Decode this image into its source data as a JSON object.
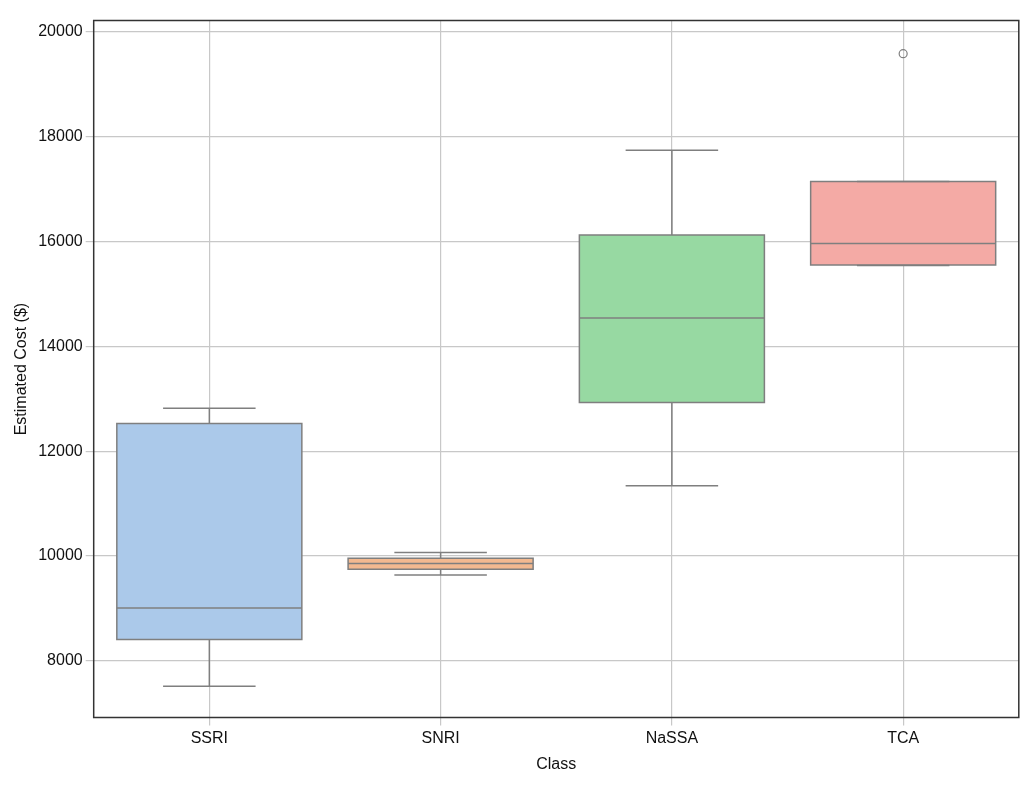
{
  "chart_data": {
    "type": "box",
    "xlabel": "Class",
    "ylabel": "Estimated Cost ($)",
    "categories": [
      "SSRI",
      "SNRI",
      "NaSSA",
      "TCA"
    ],
    "colors": [
      "#abc9ea",
      "#f3b990",
      "#97d9a2",
      "#f4aaa5"
    ],
    "boxes": [
      {
        "low": 7520,
        "q1": 8410,
        "median": 9010,
        "q3": 12530,
        "high": 12820
      },
      {
        "low": 9640,
        "q1": 9750,
        "median": 9860,
        "q3": 9960,
        "high": 10070
      },
      {
        "low": 11340,
        "q1": 12930,
        "median": 14540,
        "q3": 16120,
        "high": 17740
      },
      {
        "low": 15540,
        "q1": 15550,
        "median": 15960,
        "q3": 17140,
        "high": 17140,
        "outliers": [
          19580
        ]
      }
    ],
    "ylim": [
      6920,
      20210
    ],
    "yticks": [
      8000,
      10000,
      12000,
      14000,
      16000,
      18000,
      20000
    ],
    "grid": true,
    "legend": false
  }
}
